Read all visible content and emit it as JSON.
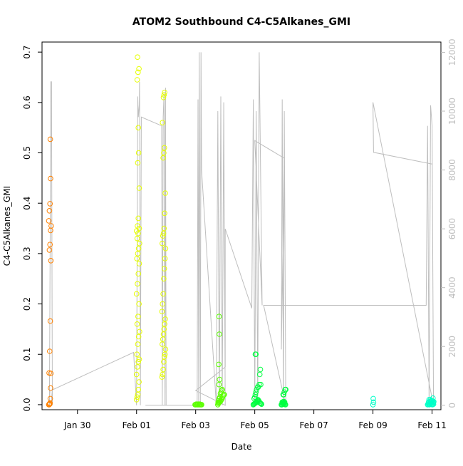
{
  "chart_data": {
    "type": "scatter",
    "title": "ATOM2 Southbound C4-C5Alkanes_GMI",
    "xlabel": "Date",
    "ylabel": "C4-C5Alkanes_GMI",
    "x_unit": "days since Jan 30",
    "xlim": [
      -1.2,
      12.3
    ],
    "ylim": [
      -0.01,
      0.72
    ],
    "y2lim": [
      -150,
      12350
    ],
    "x_ticks": [
      {
        "label": "Jan 30",
        "value": 0
      },
      {
        "label": "Feb 01",
        "value": 2
      },
      {
        "label": "Feb 03",
        "value": 4
      },
      {
        "label": "Feb 05",
        "value": 6
      },
      {
        "label": "Feb 07",
        "value": 8
      },
      {
        "label": "Feb 09",
        "value": 10
      },
      {
        "label": "Feb 11",
        "value": 12
      }
    ],
    "y_ticks": [
      {
        "label": "0.0",
        "value": 0
      },
      {
        "label": "0.1",
        "value": 0.1
      },
      {
        "label": "0.2",
        "value": 0.2
      },
      {
        "label": "0.3",
        "value": 0.3
      },
      {
        "label": "0.4",
        "value": 0.4
      },
      {
        "label": "0.5",
        "value": 0.5
      },
      {
        "label": "0.6",
        "value": 0.6
      },
      {
        "label": "0.7",
        "value": 0.7
      }
    ],
    "y2_ticks": [
      {
        "label": "0",
        "value": 0
      },
      {
        "label": "2000",
        "value": 2000
      },
      {
        "label": "4000",
        "value": 4000
      },
      {
        "label": "6000",
        "value": 6000
      },
      {
        "label": "8000",
        "value": 8000
      },
      {
        "label": "10000",
        "value": 10000
      },
      {
        "label": "12000",
        "value": 12000
      }
    ],
    "grid": false,
    "colors": {
      "altitude_line": "#bebebe",
      "flight_1": "#ff8000",
      "flight_2": "#e6ff00",
      "flight_3": "#5cff00",
      "flight_4": "#00ff40",
      "flight_5": "#00ffc8"
    },
    "altitude_line": [
      [
        -0.95,
        0
      ],
      [
        -0.9,
        11000
      ],
      [
        -0.88,
        11000
      ],
      [
        -0.85,
        0
      ],
      [
        -0.9,
        500
      ],
      [
        1.9,
        1800
      ],
      [
        2.0,
        0
      ],
      [
        2.04,
        10500
      ],
      [
        2.06,
        9800
      ],
      [
        2.09,
        10200
      ],
      [
        2.1,
        11000
      ],
      [
        2.13,
        0
      ],
      [
        2.16,
        9800
      ],
      [
        2.85,
        9500
      ],
      [
        2.87,
        0
      ],
      [
        2.9,
        9800
      ],
      [
        2.93,
        10600
      ],
      [
        2.96,
        0
      ],
      [
        2.98,
        10800
      ],
      [
        3.0,
        0
      ],
      [
        2.3,
        0
      ],
      [
        4.0,
        0
      ],
      [
        4.05,
        0
      ],
      [
        4.08,
        10400
      ],
      [
        4.1,
        0
      ],
      [
        4.12,
        12000
      ],
      [
        4.16,
        0
      ],
      [
        4.18,
        12000
      ],
      [
        4.2,
        8000
      ],
      [
        4.7,
        0
      ],
      [
        4.75,
        10000
      ],
      [
        4.8,
        0
      ],
      [
        4.85,
        10500
      ],
      [
        4.9,
        0
      ],
      [
        4.95,
        10300
      ],
      [
        5.0,
        0
      ],
      [
        4.0,
        500
      ],
      [
        5.0,
        1300
      ],
      [
        5.0,
        6000
      ],
      [
        5.9,
        3300
      ],
      [
        5.95,
        10400
      ],
      [
        6.0,
        0
      ],
      [
        6.05,
        10000
      ],
      [
        6.1,
        0
      ],
      [
        6.15,
        12000
      ],
      [
        6.25,
        3400
      ],
      [
        6.0,
        9000
      ],
      [
        7.0,
        8400
      ],
      [
        6.9,
        1900
      ],
      [
        6.93,
        10400
      ],
      [
        6.97,
        0
      ],
      [
        7.0,
        10000
      ],
      [
        7.05,
        0
      ],
      [
        6.3,
        3400
      ],
      [
        11.8,
        3400
      ],
      [
        11.85,
        9500
      ],
      [
        11.9,
        0
      ],
      [
        11.95,
        10200
      ],
      [
        12.0,
        9500
      ],
      [
        12.05,
        0
      ],
      [
        10.0,
        10300
      ],
      [
        10.02,
        8600
      ],
      [
        12.0,
        8200
      ]
    ],
    "series": [
      {
        "name": "",
        "color": "flight_1",
        "x": [
          -0.97,
          -0.96,
          -0.95,
          -0.94,
          -0.93,
          -0.92,
          -0.91,
          -0.9,
          -0.96,
          -0.94,
          -0.92,
          -0.9,
          -0.95,
          -0.93,
          -0.91,
          -0.89,
          -0.97,
          -0.95,
          -0.93,
          -0.91
        ],
        "y": [
          0.0,
          0.0,
          0.002,
          0.001,
          0.003,
          0.012,
          0.033,
          0.062,
          0.063,
          0.106,
          0.166,
          0.286,
          0.307,
          0.318,
          0.346,
          0.355,
          0.365,
          0.385,
          0.399,
          0.449
        ]
      },
      {
        "name": "",
        "color": "flight_1",
        "x": [
          -0.92
        ],
        "y": [
          0.527
        ]
      },
      {
        "name": "",
        "color": "flight_2",
        "x": [
          2.0,
          2.02,
          2.04,
          2.06,
          2.08,
          2.0,
          2.03,
          2.06,
          2.09,
          2.01,
          2.04,
          2.07,
          2.1,
          2.02,
          2.05,
          2.08,
          2.0,
          2.03,
          2.06,
          2.09,
          2.01,
          2.04,
          2.07,
          2.1,
          2.02,
          2.05,
          2.0,
          2.03,
          2.06,
          2.09,
          2.04,
          2.07,
          2.02,
          2.05,
          2.08,
          2.03,
          2.06,
          2.09
        ],
        "y": [
          0.01,
          0.015,
          0.02,
          0.03,
          0.045,
          0.06,
          0.075,
          0.085,
          0.09,
          0.1,
          0.12,
          0.135,
          0.145,
          0.16,
          0.175,
          0.2,
          0.22,
          0.24,
          0.26,
          0.28,
          0.29,
          0.3,
          0.31,
          0.32,
          0.33,
          0.34,
          0.345,
          0.355,
          0.37,
          0.43,
          0.48,
          0.5,
          0.645,
          0.66,
          0.667,
          0.69,
          0.55,
          0.35
        ]
      },
      {
        "name": "",
        "color": "flight_2",
        "x": [
          2.86,
          2.88,
          2.9,
          2.92,
          2.94,
          2.96,
          2.98,
          2.87,
          2.89,
          2.91,
          2.93,
          2.95,
          2.97,
          2.86,
          2.88,
          2.9,
          2.92,
          2.94,
          2.96,
          2.98,
          2.87,
          2.89,
          2.91,
          2.93,
          2.95,
          2.97,
          2.9,
          2.92,
          2.94,
          2.88,
          2.91,
          2.93,
          2.95
        ],
        "y": [
          0.055,
          0.06,
          0.07,
          0.085,
          0.095,
          0.1,
          0.11,
          0.12,
          0.13,
          0.14,
          0.15,
          0.16,
          0.17,
          0.185,
          0.2,
          0.22,
          0.25,
          0.27,
          0.29,
          0.31,
          0.32,
          0.335,
          0.34,
          0.35,
          0.38,
          0.42,
          0.49,
          0.5,
          0.51,
          0.56,
          0.61,
          0.615,
          0.62
        ]
      },
      {
        "name": "",
        "color": "flight_3",
        "x": [
          3.98,
          4.0,
          4.02,
          4.04,
          4.06,
          4.08,
          4.1,
          4.12,
          4.14,
          4.16,
          4.18,
          4.2
        ],
        "y": [
          0.0,
          0.0,
          0.001,
          0.0,
          0.0,
          0.001,
          0.0,
          0.0,
          0.001,
          0.0,
          0.0,
          0.0
        ]
      },
      {
        "name": "",
        "color": "flight_3",
        "x": [
          4.75,
          4.77,
          4.79,
          4.81,
          4.83,
          4.85,
          4.87,
          4.89,
          4.91,
          4.93,
          4.95,
          4.97,
          4.76,
          4.78,
          4.8,
          4.82,
          4.84,
          4.86,
          4.88,
          4.9,
          4.79,
          4.81,
          4.78,
          4.8,
          4.79
        ],
        "y": [
          0.0,
          0.002,
          0.004,
          0.005,
          0.006,
          0.008,
          0.01,
          0.012,
          0.015,
          0.018,
          0.02,
          0.02,
          0.005,
          0.008,
          0.012,
          0.015,
          0.022,
          0.025,
          0.028,
          0.03,
          0.04,
          0.05,
          0.08,
          0.14,
          0.175
        ]
      },
      {
        "name": "",
        "color": "flight_4",
        "x": [
          5.95,
          5.97,
          5.99,
          6.01,
          6.03,
          6.05,
          6.07,
          6.09,
          6.11,
          6.13,
          6.15,
          6.17,
          6.19,
          6.21,
          6.23,
          5.98,
          6.0,
          6.02,
          6.04,
          6.06,
          6.1,
          6.12,
          6.15,
          6.17,
          6.19,
          6.2,
          6.02,
          6.04
        ],
        "y": [
          0.0,
          0.001,
          0.002,
          0.003,
          0.004,
          0.005,
          0.006,
          0.008,
          0.01,
          0.008,
          0.006,
          0.004,
          0.003,
          0.002,
          0.001,
          0.012,
          0.015,
          0.02,
          0.025,
          0.03,
          0.035,
          0.035,
          0.04,
          0.06,
          0.07,
          0.04,
          0.1,
          0.1
        ]
      },
      {
        "name": "",
        "color": "flight_4",
        "x": [
          6.9,
          6.92,
          6.94,
          6.96,
          6.98,
          7.0,
          7.02,
          7.04,
          6.93,
          6.95,
          6.97,
          6.99,
          7.01,
          6.96,
          6.98,
          7.0,
          7.03,
          7.05
        ],
        "y": [
          0.0,
          0.0,
          0.001,
          0.002,
          0.003,
          0.002,
          0.001,
          0.0,
          0.005,
          0.005,
          0.006,
          0.006,
          0.005,
          0.02,
          0.02,
          0.025,
          0.03,
          0.03
        ]
      },
      {
        "name": "",
        "color": "flight_5",
        "x": [
          10.0,
          10.02,
          10.01
        ],
        "y": [
          0.0,
          0.005,
          0.012
        ]
      },
      {
        "name": "",
        "color": "flight_5",
        "x": [
          11.85,
          11.87,
          11.89,
          11.91,
          11.93,
          11.95,
          11.97,
          11.99,
          12.01,
          12.03,
          12.05,
          11.88,
          11.92,
          11.96,
          12.0,
          12.04,
          11.9,
          11.94,
          11.98,
          12.02,
          12.06,
          12.03
        ],
        "y": [
          0.0,
          0.001,
          0.002,
          0.0,
          0.001,
          0.002,
          0.003,
          0.001,
          0.0,
          0.002,
          0.001,
          0.005,
          0.006,
          0.007,
          0.008,
          0.005,
          0.01,
          0.01,
          0.008,
          0.007,
          0.006,
          0.013
        ]
      }
    ]
  }
}
